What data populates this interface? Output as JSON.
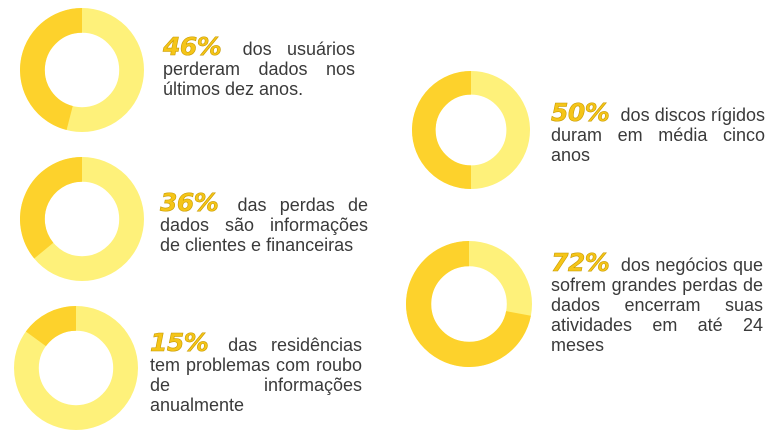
{
  "colors": {
    "light": "#fef17a",
    "dark": "#fdd22c",
    "percent": "#f5c518"
  },
  "stats": [
    {
      "percent": "46%",
      "text": "dos usuários perderam dados nos últimos dez anos."
    },
    {
      "percent": "36%",
      "text": "das perdas de dados são informações de clientes e financeiras"
    },
    {
      "percent": "15%",
      "text": "das residências tem problemas com roubo de informações anualmente"
    },
    {
      "percent": "50%",
      "text": "dos discos rígidos duram em média cinco anos"
    },
    {
      "percent": "72%",
      "text": "dos negócios que sofrem grandes perdas de dados encerram suas atividades em até 24 meses"
    }
  ],
  "chart_data": [
    {
      "type": "pie",
      "labels": [
        "highlighted",
        "rest"
      ],
      "values": [
        46,
        54
      ]
    },
    {
      "type": "pie",
      "labels": [
        "highlighted",
        "rest"
      ],
      "values": [
        36,
        64
      ]
    },
    {
      "type": "pie",
      "labels": [
        "highlighted",
        "rest"
      ],
      "values": [
        15,
        85
      ]
    },
    {
      "type": "pie",
      "labels": [
        "highlighted",
        "rest"
      ],
      "values": [
        50,
        50
      ]
    },
    {
      "type": "pie",
      "labels": [
        "highlighted",
        "rest"
      ],
      "values": [
        72,
        28
      ]
    }
  ]
}
